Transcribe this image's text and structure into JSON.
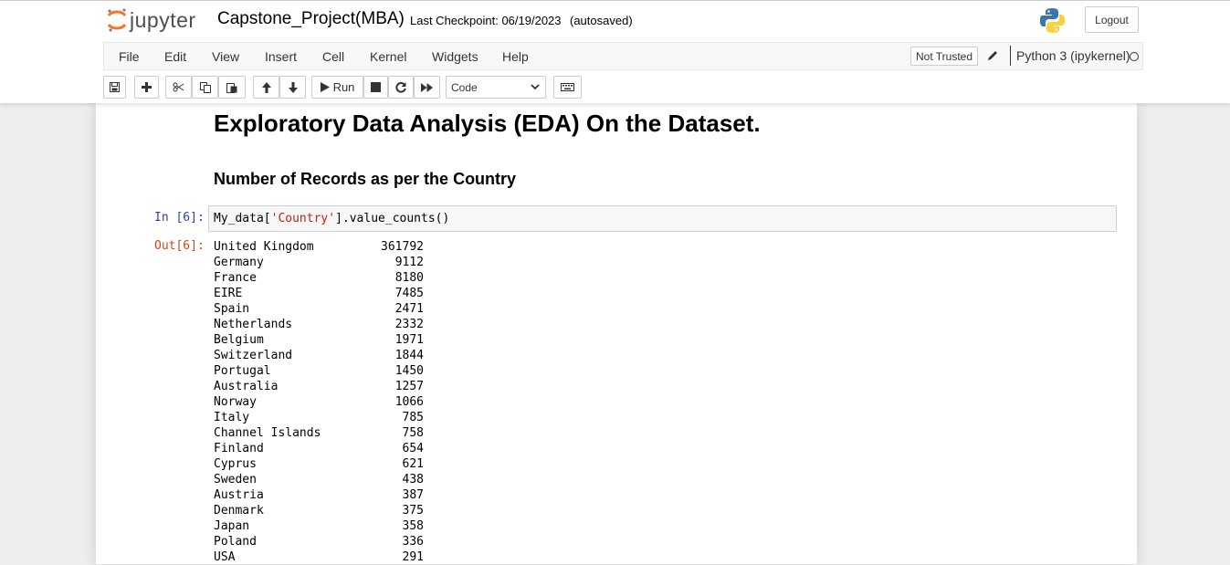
{
  "header": {
    "logo_text": "jupyter",
    "notebook_name": "Capstone_Project(MBA)",
    "checkpoint": "Last Checkpoint: 06/19/2023",
    "autosave_status": "(autosaved)",
    "logout_label": "Logout"
  },
  "menu": {
    "items": [
      "File",
      "Edit",
      "View",
      "Insert",
      "Cell",
      "Kernel",
      "Widgets",
      "Help"
    ],
    "trust_status": "Not Trusted",
    "kernel_name": "Python 3 (ipykernel)"
  },
  "toolbar": {
    "run_label": "Run",
    "cell_type": "Code",
    "icons": [
      "save-icon",
      "plus-icon",
      "cut-icon",
      "copy-icon",
      "paste-icon",
      "arrow-up-icon",
      "arrow-down-icon",
      "run-icon",
      "stop-icon",
      "restart-icon",
      "fast-forward-icon",
      "keyboard-icon"
    ]
  },
  "notebook": {
    "heading1": "Exploratory Data Analysis (EDA) On the Dataset.",
    "heading3": "Number of Records as per the Country",
    "input_prompt": "In [6]:",
    "code_prefix": "My_data[",
    "code_string": "'Country'",
    "code_suffix": "].value_counts()",
    "output_prompt": "Out[6]:",
    "output_rows": [
      {
        "country": "United Kingdom",
        "count": "361792"
      },
      {
        "country": "Germany",
        "count": "9112"
      },
      {
        "country": "France",
        "count": "8180"
      },
      {
        "country": "EIRE",
        "count": "7485"
      },
      {
        "country": "Spain",
        "count": "2471"
      },
      {
        "country": "Netherlands",
        "count": "2332"
      },
      {
        "country": "Belgium",
        "count": "1971"
      },
      {
        "country": "Switzerland",
        "count": "1844"
      },
      {
        "country": "Portugal",
        "count": "1450"
      },
      {
        "country": "Australia",
        "count": "1257"
      },
      {
        "country": "Norway",
        "count": "1066"
      },
      {
        "country": "Italy",
        "count": "785"
      },
      {
        "country": "Channel Islands",
        "count": "758"
      },
      {
        "country": "Finland",
        "count": "654"
      },
      {
        "country": "Cyprus",
        "count": "621"
      },
      {
        "country": "Sweden",
        "count": "438"
      },
      {
        "country": "Austria",
        "count": "387"
      },
      {
        "country": "Denmark",
        "count": "375"
      },
      {
        "country": "Japan",
        "count": "358"
      },
      {
        "country": "Poland",
        "count": "336"
      },
      {
        "country": "USA",
        "count": "291"
      }
    ]
  },
  "colors": {
    "logo_orange": "#f37626",
    "input_prompt": "#303f9f",
    "output_prompt": "#d84315",
    "string_literal": "#ba2121"
  }
}
